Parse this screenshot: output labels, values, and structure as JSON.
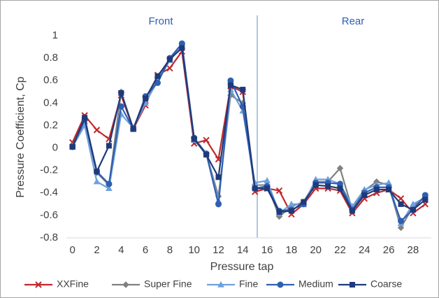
{
  "chart_data": {
    "type": "line",
    "xlabel": "Pressure tap",
    "ylabel": "Pressure Coefficient, Cp",
    "annotations": [
      "Front",
      "Rear"
    ],
    "x": [
      0,
      1,
      2,
      3,
      4,
      5,
      6,
      7,
      8,
      9,
      10,
      11,
      12,
      13,
      14,
      15,
      16,
      17,
      18,
      19,
      20,
      21,
      22,
      23,
      24,
      25,
      26,
      27,
      28,
      29
    ],
    "xlim": [
      -0.5,
      29.5
    ],
    "xticks": [
      0,
      2,
      4,
      6,
      8,
      10,
      12,
      14,
      16,
      18,
      20,
      22,
      24,
      26,
      28
    ],
    "ylim": [
      -0.8,
      1
    ],
    "yticks": [
      -0.8,
      -0.6,
      -0.4,
      -0.2,
      0,
      0.2,
      0.4,
      0.6,
      0.8,
      1
    ],
    "legend": "bottom",
    "series": [
      {
        "name": "XXFine",
        "color": "#c0282d",
        "marker": "x",
        "values": [
          0.05,
          0.29,
          0.16,
          0.08,
          0.47,
          0.17,
          0.38,
          0.65,
          0.71,
          0.86,
          0.04,
          0.07,
          -0.1,
          0.55,
          0.5,
          -0.39,
          -0.36,
          -0.38,
          -0.59,
          -0.5,
          -0.36,
          -0.36,
          -0.38,
          -0.58,
          -0.45,
          -0.4,
          -0.37,
          -0.45,
          -0.58,
          -0.5
        ]
      },
      {
        "name": "Super Fine",
        "color": "#808080",
        "marker": "diamond",
        "values": [
          0.02,
          0.22,
          -0.22,
          -0.33,
          0.5,
          0.17,
          0.45,
          0.62,
          0.8,
          0.92,
          0.08,
          -0.05,
          -0.43,
          0.47,
          0.4,
          -0.33,
          -0.33,
          -0.61,
          -0.52,
          -0.48,
          -0.3,
          -0.3,
          -0.18,
          -0.55,
          -0.38,
          -0.3,
          -0.33,
          -0.71,
          -0.52,
          -0.44
        ]
      },
      {
        "name": "Fine",
        "color": "#6fa0dc",
        "marker": "triangle",
        "values": [
          0.01,
          0.2,
          -0.3,
          -0.36,
          0.3,
          0.18,
          0.4,
          0.6,
          0.78,
          0.91,
          0.07,
          -0.05,
          -0.47,
          0.52,
          0.33,
          -0.31,
          -0.29,
          -0.58,
          -0.5,
          -0.5,
          -0.28,
          -0.28,
          -0.32,
          -0.52,
          -0.37,
          -0.33,
          -0.31,
          -0.67,
          -0.5,
          -0.44
        ]
      },
      {
        "name": "Medium",
        "color": "#2e5fb2",
        "marker": "circle",
        "values": [
          0.01,
          0.25,
          -0.21,
          -0.32,
          0.37,
          0.17,
          0.46,
          0.58,
          0.8,
          0.93,
          0.09,
          -0.05,
          -0.5,
          0.6,
          0.37,
          -0.36,
          -0.34,
          -0.56,
          -0.55,
          -0.5,
          -0.31,
          -0.31,
          -0.32,
          -0.55,
          -0.4,
          -0.35,
          -0.35,
          -0.65,
          -0.55,
          -0.42
        ]
      },
      {
        "name": "Coarse",
        "color": "#1f3a7a",
        "marker": "square",
        "values": [
          0.01,
          0.27,
          -0.21,
          0.02,
          0.49,
          0.17,
          0.44,
          0.64,
          0.79,
          0.89,
          0.08,
          -0.06,
          -0.26,
          0.56,
          0.52,
          -0.36,
          -0.36,
          -0.57,
          -0.56,
          -0.48,
          -0.33,
          -0.34,
          -0.36,
          -0.56,
          -0.42,
          -0.37,
          -0.37,
          -0.5,
          -0.55,
          -0.46
        ]
      }
    ]
  }
}
